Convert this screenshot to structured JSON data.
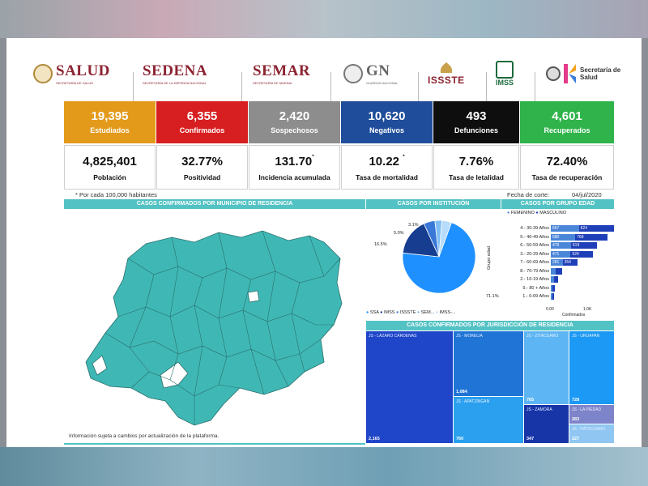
{
  "header": {
    "logos": [
      {
        "name": "SALUD",
        "sub": "SECRETARÍA DE SALUD"
      },
      {
        "name": "SEDENA",
        "sub": "SECRETARÍA DE LA DEFENSA NACIONAL"
      },
      {
        "name": "SEMAR",
        "sub": "SECRETARÍA DE MARINA"
      },
      {
        "name": "GN",
        "sub": "GUARDIA NACIONAL"
      },
      {
        "name": "ISSSTE",
        "sub": ""
      },
      {
        "name": "IMSS",
        "sub": ""
      },
      {
        "name": "Secretaría de Salud",
        "sub": ""
      }
    ]
  },
  "tiles": [
    {
      "value": "19,395",
      "label": "Estudiados",
      "color": "#e39a1a"
    },
    {
      "value": "6,355",
      "label": "Confirmados",
      "color": "#d71e20"
    },
    {
      "value": "2,420",
      "label": "Sospechosos",
      "color": "#8d8d8d"
    },
    {
      "value": "10,620",
      "label": "Negativos",
      "color": "#1f4d9b"
    },
    {
      "value": "493",
      "label": "Defunciones",
      "color": "#0e0e0e"
    },
    {
      "value": "4,601",
      "label": "Recuperados",
      "color": "#2fb34a"
    }
  ],
  "kpis": [
    {
      "value": "4,825,401",
      "label": "Población",
      "sup": ""
    },
    {
      "value": "32.77%",
      "label": "Positividad",
      "sup": ""
    },
    {
      "value": "131.70",
      "label": "Incidencia acumulada",
      "sup": "*"
    },
    {
      "value": "10.22",
      "label": "Tasa de mortalidad",
      "sup": "*"
    },
    {
      "value": "7.76%",
      "label": "Tasa de letalidad",
      "sup": ""
    },
    {
      "value": "72.40%",
      "label": "Tasa de recuperación",
      "sup": ""
    }
  ],
  "footnote": "* Por cada 100,000 habitantes",
  "cutoff_label": "Fecha de corte:",
  "cutoff_date": "04/jul/2020",
  "sections": {
    "map": "CASOS CONFIRMADOS POR MUNICIPIO DE RESIDENCIA",
    "institution": "CASOS POR INSTITUCIÓN",
    "age": "CASOS POR GRUPO EDAD",
    "jurisdiction": "CASOS CONFIRMADOS POR JURISDICCIÓN DE RESIDENCIA"
  },
  "disclaimer": "Información sujeta a cambios por actualización de la plataforma.",
  "institution_chart": {
    "type": "pie",
    "slices": [
      {
        "name": "SSA",
        "label": "71.1%",
        "value": 71.1,
        "color": "#1e90ff"
      },
      {
        "name": "IMSS",
        "label": "16.5%",
        "value": 16.5,
        "color": "#163d8f"
      },
      {
        "name": "ISSSTE",
        "label": "5.0%",
        "value": 5.0,
        "color": "#3a78d8"
      },
      {
        "name": "SEM...",
        "label": "3.1%",
        "value": 3.1,
        "color": "#7fbdf5"
      },
      {
        "name": "IMSS-...",
        "label": "",
        "value": 4.3,
        "color": "#b8dcfb"
      }
    ],
    "legend": [
      "SSA",
      "IMSS",
      "ISSSTE",
      "SEM...",
      "IMSS-..."
    ]
  },
  "age_chart": {
    "type": "bar",
    "legend": [
      "FEMENINO",
      "MASCULINO"
    ],
    "ylabel": "Grupo edad",
    "xlabel": "Confirmados",
    "x_ticks": [
      "0.00",
      "1.0K"
    ],
    "colors": {
      "fem": "#4a86d8",
      "masc": "#1f3fb8"
    },
    "rows": [
      {
        "group": "4.- 30-39 Años",
        "fem": 667,
        "masc": 824
      },
      {
        "group": "5.- 40-49 Años",
        "fem": 580,
        "masc": 768
      },
      {
        "group": "6.- 50-59 Años",
        "fem": 479,
        "masc": 619
      },
      {
        "group": "3.- 20-29 Años",
        "fem": 471,
        "masc": 524
      },
      {
        "group": "7.- 60-69 Años",
        "fem": 281,
        "masc": 354
      },
      {
        "group": "8.- 70-79 Años",
        "fem": 120,
        "masc": 150
      },
      {
        "group": "2.- 10-19 Años",
        "fem": 80,
        "masc": 90
      },
      {
        "group": "9.- 80 + Años",
        "fem": 45,
        "masc": 55
      },
      {
        "group": "1.- 0-09 Años",
        "fem": 35,
        "masc": 40
      }
    ]
  },
  "jurisdiction_chart": {
    "type": "table",
    "cells": [
      {
        "name": "JS - LÁZARO CÁRDENAS",
        "value": "2,165",
        "color": "#1f45c9"
      },
      {
        "name": "JS - MORELIA",
        "value": "1,084",
        "color": "#1f74d6"
      },
      {
        "name": "JS - APATZINGÁN",
        "value": "760",
        "color": "#2aa0ee"
      },
      {
        "name": "JS - ZITÁCUARO",
        "value": "765",
        "color": "#5db6f3"
      },
      {
        "name": "JS - URUAPAN",
        "value": "728",
        "color": "#1b99f4"
      },
      {
        "name": "JS - ZAMORA",
        "value": "347",
        "color": "#1835a8"
      },
      {
        "name": "JS - LA PIEDAD",
        "value": "283",
        "color": "#7e84c9"
      },
      {
        "name": "JS - PÁTZCUARO",
        "value": "227",
        "color": "#8fc7f2"
      }
    ]
  },
  "map_color": "#3fb8b5"
}
